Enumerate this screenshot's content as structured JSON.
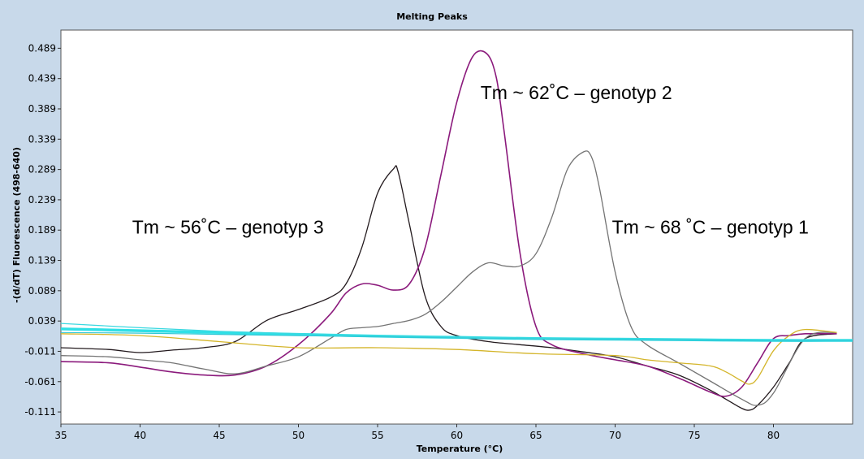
{
  "chart_data": {
    "type": "line",
    "title": "Melting Peaks",
    "xlabel": "Temperature (°C)",
    "ylabel": "-(d/dT) Fluorescence (498-640)",
    "xlim": [
      35,
      85
    ],
    "ylim": [
      -0.131,
      0.519
    ],
    "x_ticks": [
      35,
      40,
      45,
      50,
      55,
      60,
      65,
      70,
      75,
      80
    ],
    "x_tick_labels": [
      "35",
      "40",
      "45",
      "50",
      "55",
      "60",
      "65",
      "70",
      "75",
      "80"
    ],
    "y_ticks": [
      0.489,
      0.439,
      0.389,
      0.339,
      0.289,
      0.239,
      0.189,
      0.139,
      0.089,
      0.039,
      -0.011,
      -0.061,
      -0.111
    ],
    "y_tick_labels": [
      "0.489",
      "0.439",
      "0.389",
      "0.339",
      "0.289",
      "0.239",
      "0.189",
      "0.139",
      "0.089",
      "0.039",
      "-0.011",
      "-0.061",
      "-0.111"
    ],
    "grid": false,
    "annotations": [
      {
        "text": "Tm ~ 62˚C – genotyp 2",
        "x": 61.5,
        "y": 0.405
      },
      {
        "text": "Tm ~ 56˚C – genotyp 3",
        "x": 39.5,
        "y": 0.183
      },
      {
        "text": "Tm ~ 68 ˚C – genotyp 1",
        "x": 69.8,
        "y": 0.183
      }
    ],
    "series": [
      {
        "color": "#231a1e",
        "width": 1.3,
        "x": [
          35,
          38,
          40,
          42,
          44,
          46,
          48,
          50,
          52,
          53,
          54,
          55,
          56,
          56.3,
          57,
          58,
          59,
          60,
          62,
          64,
          66,
          68,
          70,
          72,
          74,
          76,
          77,
          78,
          78.5,
          79,
          80,
          81,
          82,
          84
        ],
        "y": [
          -0.005,
          -0.008,
          -0.013,
          -0.009,
          -0.005,
          0.005,
          0.04,
          0.058,
          0.078,
          0.1,
          0.16,
          0.25,
          0.29,
          0.285,
          0.2,
          0.08,
          0.03,
          0.015,
          0.005,
          0.0,
          -0.005,
          -0.012,
          -0.02,
          -0.035,
          -0.05,
          -0.075,
          -0.09,
          -0.105,
          -0.108,
          -0.1,
          -0.07,
          -0.03,
          0.01,
          0.018
        ]
      },
      {
        "color": "#8b1a7c",
        "width": 1.6,
        "x": [
          35,
          38,
          40,
          42,
          44,
          46,
          48,
          50,
          52,
          53,
          54,
          55,
          56,
          57,
          58,
          59,
          60,
          61,
          61.9,
          62.5,
          63,
          64,
          65,
          66,
          68,
          70,
          72,
          74,
          76,
          77,
          78,
          79,
          80,
          81,
          82,
          84
        ],
        "y": [
          -0.028,
          -0.03,
          -0.037,
          -0.045,
          -0.05,
          -0.05,
          -0.035,
          0.0,
          0.05,
          0.085,
          0.1,
          0.098,
          0.09,
          0.1,
          0.16,
          0.28,
          0.4,
          0.475,
          0.48,
          0.44,
          0.35,
          0.15,
          0.03,
          0.0,
          -0.015,
          -0.025,
          -0.035,
          -0.055,
          -0.078,
          -0.085,
          -0.07,
          -0.03,
          0.01,
          0.015,
          0.018,
          0.018
        ]
      },
      {
        "color": "#747474",
        "width": 1.3,
        "x": [
          35,
          38,
          40,
          42,
          44,
          46,
          48,
          50,
          52,
          53,
          54,
          55,
          56,
          57,
          58,
          59,
          60,
          61,
          62,
          63,
          64,
          65,
          66,
          67,
          68,
          68.5,
          69,
          70,
          71,
          72,
          74,
          76,
          78,
          79,
          80,
          82,
          84
        ],
        "y": [
          -0.018,
          -0.02,
          -0.025,
          -0.03,
          -0.04,
          -0.048,
          -0.035,
          -0.02,
          0.01,
          0.025,
          0.028,
          0.03,
          0.035,
          0.04,
          0.05,
          0.07,
          0.095,
          0.12,
          0.135,
          0.13,
          0.13,
          0.15,
          0.21,
          0.29,
          0.318,
          0.31,
          0.26,
          0.12,
          0.03,
          0.0,
          -0.03,
          -0.06,
          -0.09,
          -0.1,
          -0.08,
          0.01,
          0.02
        ]
      },
      {
        "color": "#d4b52a",
        "width": 1.3,
        "x": [
          35,
          40,
          45,
          50,
          55,
          60,
          65,
          70,
          72,
          74,
          76,
          77,
          78,
          78.5,
          79,
          80,
          81,
          82,
          84
        ],
        "y": [
          0.018,
          0.015,
          0.005,
          -0.005,
          -0.005,
          -0.008,
          -0.015,
          -0.018,
          -0.025,
          -0.03,
          -0.035,
          -0.045,
          -0.06,
          -0.065,
          -0.055,
          -0.01,
          0.015,
          0.025,
          0.02
        ]
      },
      {
        "color": "#2fe0e6",
        "width": 3.5,
        "x": [
          35,
          40,
          45,
          50,
          55,
          60,
          65,
          70,
          75,
          80,
          85
        ],
        "y": [
          0.026,
          0.023,
          0.02,
          0.017,
          0.014,
          0.012,
          0.01,
          0.009,
          0.008,
          0.007,
          0.007
        ]
      },
      {
        "color": "#3ad8e0",
        "width": 1.2,
        "x": [
          35,
          40,
          45,
          50,
          55,
          60,
          65,
          70,
          75,
          80,
          85
        ],
        "y": [
          0.035,
          0.028,
          0.022,
          0.018,
          0.015,
          0.013,
          0.011,
          0.01,
          0.009,
          0.008,
          0.008
        ]
      },
      {
        "color": "#2fc8d6",
        "width": 1.2,
        "x": [
          35,
          40,
          45,
          50,
          55,
          60,
          65,
          70,
          75,
          80,
          85
        ],
        "y": [
          0.02,
          0.019,
          0.017,
          0.015,
          0.013,
          0.011,
          0.009,
          0.008,
          0.007,
          0.006,
          0.006
        ]
      }
    ]
  }
}
